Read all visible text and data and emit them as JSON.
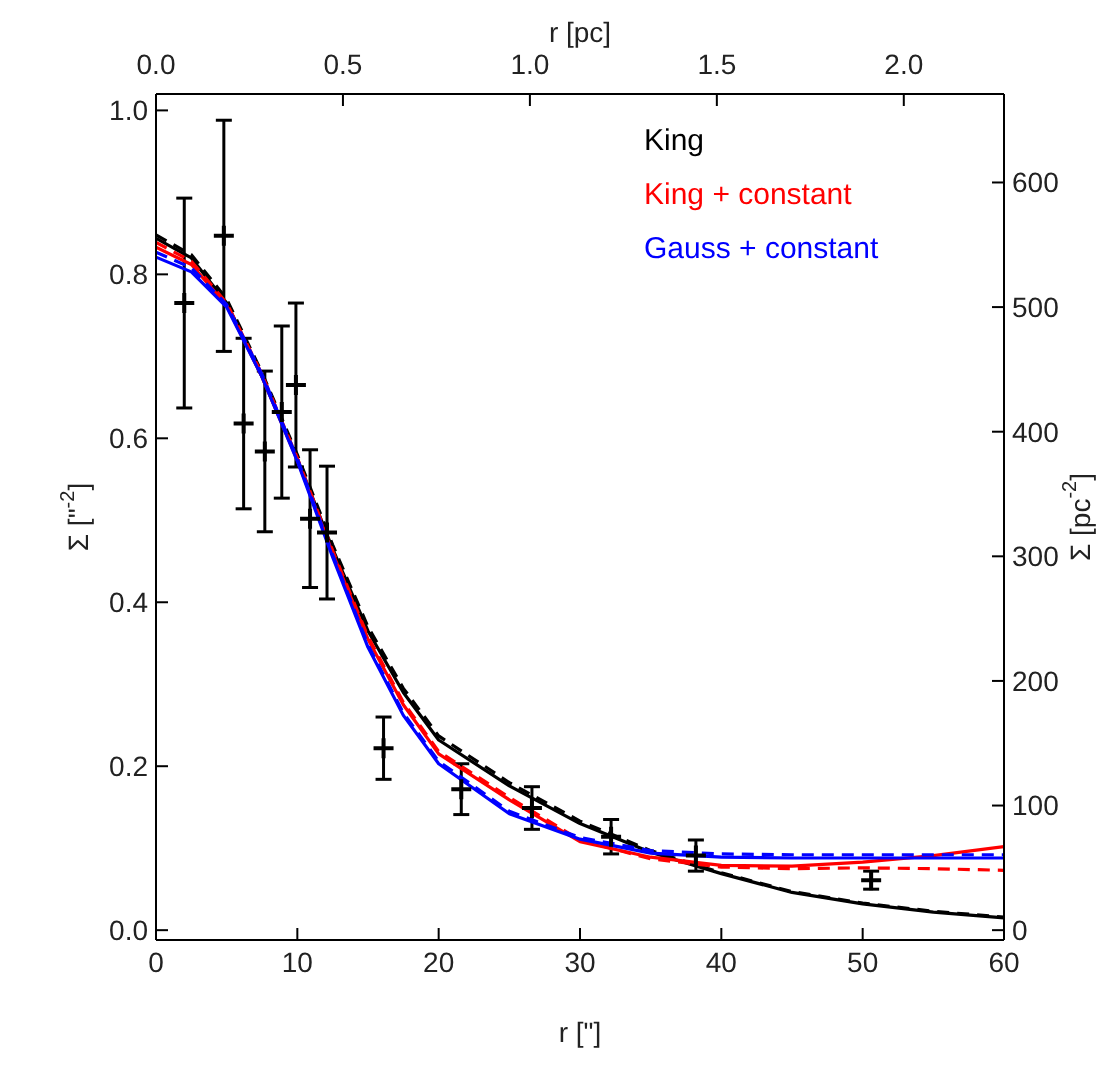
{
  "chart_data": {
    "type": "line",
    "xlabel": "r [\"]",
    "ylabel": "Σ [\"$^{-2}$]",
    "x2label": "r [pc]",
    "y2label": "Σ [pc$^{-2}$]",
    "xlim": [
      0,
      60
    ],
    "xticks": [
      0,
      10,
      20,
      30,
      40,
      50,
      60
    ],
    "ylim": [
      -0.012,
      1.02
    ],
    "yticks": [
      {
        "value": 0,
        "label": "0.0"
      },
      {
        "value": 0.2,
        "label": "0.2"
      },
      {
        "value": 0.4,
        "label": "0.4"
      },
      {
        "value": 0.6,
        "label": "0.6"
      },
      {
        "value": 0.8,
        "label": "0.8"
      },
      {
        "value": 1,
        "label": "1.0"
      }
    ],
    "x2lim": [
      0,
      2.268
    ],
    "x2ticks": [
      {
        "value": 0,
        "label": "0.0"
      },
      0.5,
      {
        "value": 1,
        "label": "1.0"
      },
      1.5,
      {
        "value": 2,
        "label": "2.0"
      }
    ],
    "y2lim": [
      -7.9,
      671
    ],
    "y2ticks": [
      0,
      100,
      200,
      300,
      400,
      500,
      600
    ],
    "legend": "top right",
    "series": [
      {
        "type": "scatter",
        "marker": "cross",
        "color": "#000000",
        "x": [
          2.0,
          4.8,
          6.2,
          7.7,
          8.9,
          9.9,
          10.9,
          12.1,
          16.1,
          21.6,
          26.6,
          32.2,
          38.2,
          50.6
        ],
        "values": [
          0.765,
          0.847,
          0.618,
          0.584,
          0.632,
          0.665,
          0.502,
          0.485,
          0.222,
          0.172,
          0.149,
          0.114,
          0.091,
          0.061
        ],
        "errors": [
          0.128,
          0.141,
          0.104,
          0.098,
          0.105,
          0.1,
          0.084,
          0.081,
          0.038,
          0.031,
          0.026,
          0.021,
          0.019,
          0.011
        ]
      },
      {
        "name": "King",
        "color": "#000000",
        "line_style": "solid",
        "x": [
          0,
          2.5,
          5,
          7.5,
          10,
          12.5,
          15,
          17.5,
          20,
          25,
          30,
          35,
          40,
          45,
          50,
          55,
          60
        ],
        "values": [
          0.844,
          0.82,
          0.765,
          0.675,
          0.575,
          0.465,
          0.365,
          0.29,
          0.232,
          0.176,
          0.13,
          0.095,
          0.069,
          0.046,
          0.032,
          0.022,
          0.015
        ]
      },
      {
        "color": "#000000",
        "line_style": "dashed",
        "x": [
          0,
          2.5,
          5,
          7.5,
          10,
          12.5,
          15,
          17.5,
          20,
          25,
          30,
          35,
          40,
          45,
          50,
          55,
          60
        ],
        "values": [
          0.848,
          0.824,
          0.77,
          0.68,
          0.58,
          0.47,
          0.37,
          0.295,
          0.237,
          0.18,
          0.133,
          0.097,
          0.07,
          0.047,
          0.033,
          0.023,
          0.016
        ]
      },
      {
        "name": "King + constant",
        "color": "#ff0000",
        "line_style": "solid",
        "x": [
          0,
          2.5,
          5,
          7.5,
          10,
          12.5,
          15,
          17.5,
          20,
          25,
          30,
          35,
          40,
          45,
          50,
          55,
          60
        ],
        "values": [
          0.833,
          0.812,
          0.762,
          0.675,
          0.573,
          0.46,
          0.355,
          0.275,
          0.215,
          0.159,
          0.108,
          0.089,
          0.079,
          0.078,
          0.083,
          0.091,
          0.102
        ]
      },
      {
        "color": "#ff0000",
        "line_style": "dashed",
        "x": [
          0,
          2.5,
          5,
          7.5,
          10,
          12.5,
          15,
          17.5,
          20,
          25,
          30,
          35,
          40,
          45,
          50,
          55,
          60
        ],
        "values": [
          0.839,
          0.816,
          0.765,
          0.678,
          0.576,
          0.463,
          0.358,
          0.278,
          0.218,
          0.162,
          0.11,
          0.087,
          0.077,
          0.075,
          0.076,
          0.075,
          0.073
        ]
      },
      {
        "name": "Gauss + constant",
        "color": "#0000ff",
        "line_style": "solid",
        "x": [
          0,
          2.5,
          5,
          7.5,
          10,
          12.5,
          15,
          17.5,
          20,
          25,
          30,
          35,
          40,
          45,
          50,
          55,
          60
        ],
        "values": [
          0.821,
          0.803,
          0.76,
          0.675,
          0.572,
          0.455,
          0.345,
          0.262,
          0.203,
          0.142,
          0.111,
          0.094,
          0.089,
          0.088,
          0.088,
          0.088,
          0.088
        ]
      },
      {
        "color": "#0000ff",
        "line_style": "dashed",
        "x": [
          0,
          2.5,
          5,
          7.5,
          10,
          12.5,
          15,
          17.5,
          20,
          25,
          30,
          35,
          40,
          45,
          50,
          55,
          60
        ],
        "values": [
          0.827,
          0.808,
          0.763,
          0.678,
          0.575,
          0.458,
          0.348,
          0.265,
          0.206,
          0.145,
          0.113,
          0.097,
          0.093,
          0.092,
          0.092,
          0.092,
          0.092
        ]
      }
    ]
  }
}
